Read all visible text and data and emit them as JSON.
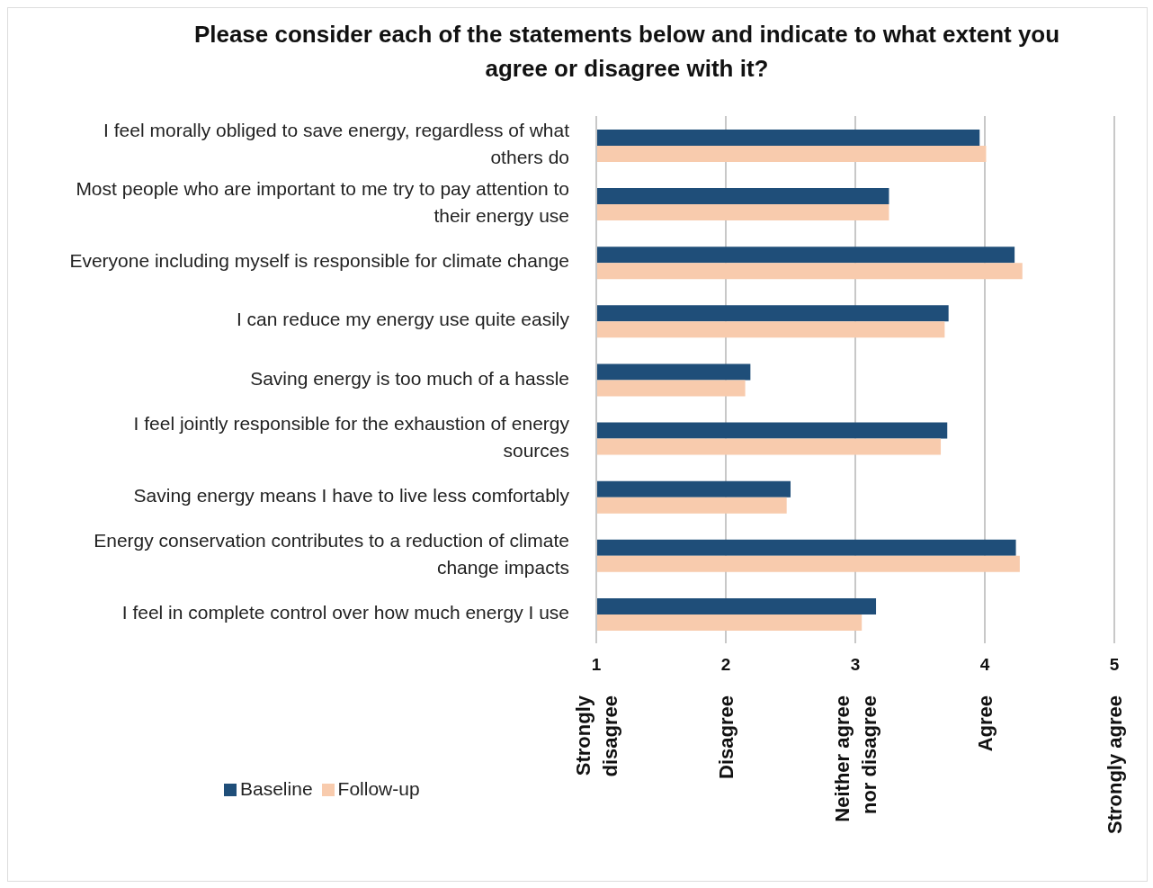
{
  "chart_data": {
    "type": "bar",
    "orientation": "horizontal",
    "title": "Please consider each of the statements below and indicate to what extent you agree or disagree with it?",
    "categories": [
      "I feel morally obliged to save energy, regardless of what others do",
      "Most people who are important to me try to pay attention to their energy use",
      "Everyone including myself is responsible for climate change",
      "I can reduce my energy use quite easily",
      "Saving energy is too much of a hassle",
      "I feel jointly responsible for the exhaustion of energy sources",
      "Saving energy means I have to live less comfortably",
      "Energy conservation contributes to a reduction of climate change impacts",
      "I feel in complete control over how much energy I use"
    ],
    "series": [
      {
        "name": "Baseline",
        "color": "#1f4e79",
        "values": [
          3.96,
          3.26,
          4.23,
          3.72,
          2.19,
          3.71,
          2.5,
          4.24,
          3.16
        ]
      },
      {
        "name": "Follow-up",
        "color": "#f8cbad",
        "values": [
          4.01,
          3.26,
          4.29,
          3.69,
          2.15,
          3.66,
          2.47,
          4.27,
          3.05
        ]
      }
    ],
    "xlim": [
      1,
      5
    ],
    "xticks": [
      1,
      2,
      3,
      4,
      5
    ],
    "grid": "x",
    "legend": "bottom left",
    "annotations": [
      "Strongly disagree",
      "Disagree",
      "Neither agree nor disagree",
      "Agree",
      "Strongly agree"
    ]
  }
}
